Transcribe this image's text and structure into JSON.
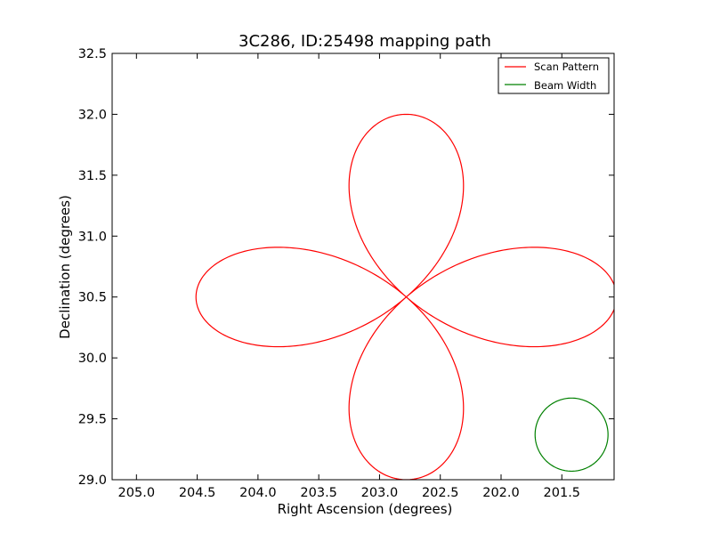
{
  "chart_data": {
    "type": "line",
    "title": "3C286, ID:25498 mapping path",
    "xlabel": "Right Ascension (degrees)",
    "ylabel": "Declination (degrees)",
    "xlim": [
      205.2,
      201.07
    ],
    "ylim": [
      29.0,
      32.5
    ],
    "x_inverted": true,
    "grid": false,
    "legend_position": "top-right",
    "xticks": [
      "205.0",
      "204.5",
      "204.0",
      "203.5",
      "203.0",
      "202.5",
      "202.0",
      "201.5"
    ],
    "yticks": [
      "29.0",
      "29.5",
      "30.0",
      "30.5",
      "31.0",
      "31.5",
      "32.0",
      "32.5"
    ],
    "series": [
      {
        "name": "Scan Pattern",
        "color": "#ff0000",
        "kind": "rose-curve",
        "center_ra": 202.78,
        "center_dec": 30.5,
        "petal_radius_ra": 1.73,
        "petal_radius_dec": 1.5,
        "petals": 4,
        "start_ra": 204.52,
        "start_dec": 30.5
      },
      {
        "name": "Beam Width",
        "color": "#008000",
        "kind": "circle",
        "center_ra": 201.42,
        "center_dec": 29.37,
        "radius_ra": 0.3,
        "radius_dec": 0.3
      }
    ]
  }
}
